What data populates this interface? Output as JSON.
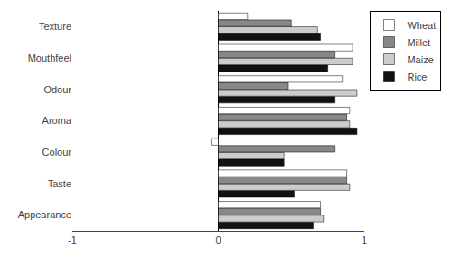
{
  "chart_data": {
    "type": "bar",
    "orientation": "horizontal",
    "categories": [
      "Appearance",
      "Taste",
      "Colour",
      "Aroma",
      "Odour",
      "Mouthfeel",
      "Texture"
    ],
    "series": [
      {
        "name": "Wheat",
        "color": "#ffffff",
        "values": [
          0.7,
          0.88,
          -0.05,
          0.9,
          0.85,
          0.92,
          0.2
        ]
      },
      {
        "name": "Millet",
        "color": "#888888",
        "values": [
          0.7,
          0.88,
          0.8,
          0.88,
          0.48,
          0.8,
          0.5
        ]
      },
      {
        "name": "Maize",
        "color": "#cccccc",
        "values": [
          0.72,
          0.9,
          0.45,
          0.9,
          0.95,
          0.92,
          0.68
        ]
      },
      {
        "name": "Rice",
        "color": "#111111",
        "values": [
          0.65,
          0.52,
          0.45,
          0.95,
          0.8,
          0.75,
          0.7
        ]
      }
    ],
    "xlim": [
      -1,
      1
    ],
    "xticks": [
      -1,
      0,
      1
    ],
    "grid": false,
    "legend": "right"
  }
}
